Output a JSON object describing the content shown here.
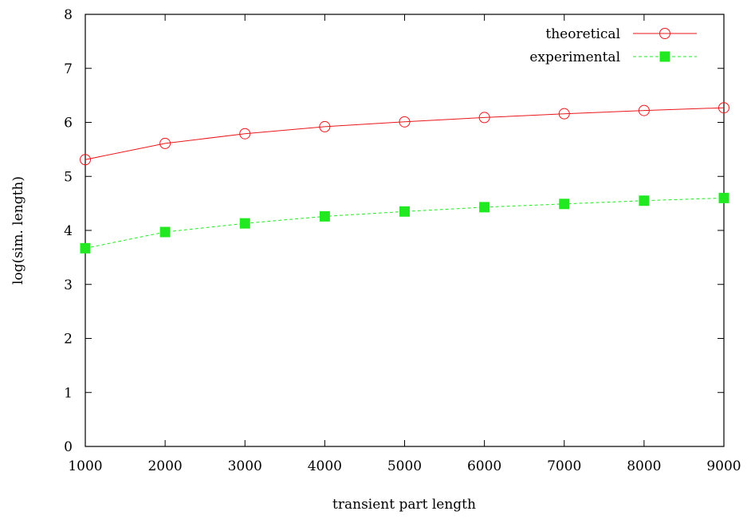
{
  "chart_data": {
    "type": "line",
    "xlabel": "transient part length",
    "ylabel": "log(sim. length)",
    "xlim": [
      1000,
      9000
    ],
    "ylim": [
      0,
      8
    ],
    "xticks": [
      "1000",
      "2000",
      "3000",
      "4000",
      "5000",
      "6000",
      "7000",
      "8000",
      "9000"
    ],
    "yticks": [
      "0",
      "1",
      "2",
      "3",
      "4",
      "5",
      "6",
      "7",
      "8"
    ],
    "x": [
      1000,
      2000,
      3000,
      4000,
      5000,
      6000,
      7000,
      8000,
      9000
    ],
    "legend_position": "top-right",
    "grid": false,
    "series": [
      {
        "name": "theoretical",
        "values": [
          5.31,
          5.61,
          5.79,
          5.92,
          6.01,
          6.09,
          6.16,
          6.22,
          6.27
        ],
        "color": "#e8161a",
        "marker": "open-circle",
        "line_style": "solid"
      },
      {
        "name": "experimental",
        "values": [
          3.67,
          3.97,
          4.13,
          4.26,
          4.35,
          4.43,
          4.49,
          4.55,
          4.6
        ],
        "color": "#22e822",
        "marker": "filled-square",
        "line_style": "dashed"
      }
    ]
  }
}
